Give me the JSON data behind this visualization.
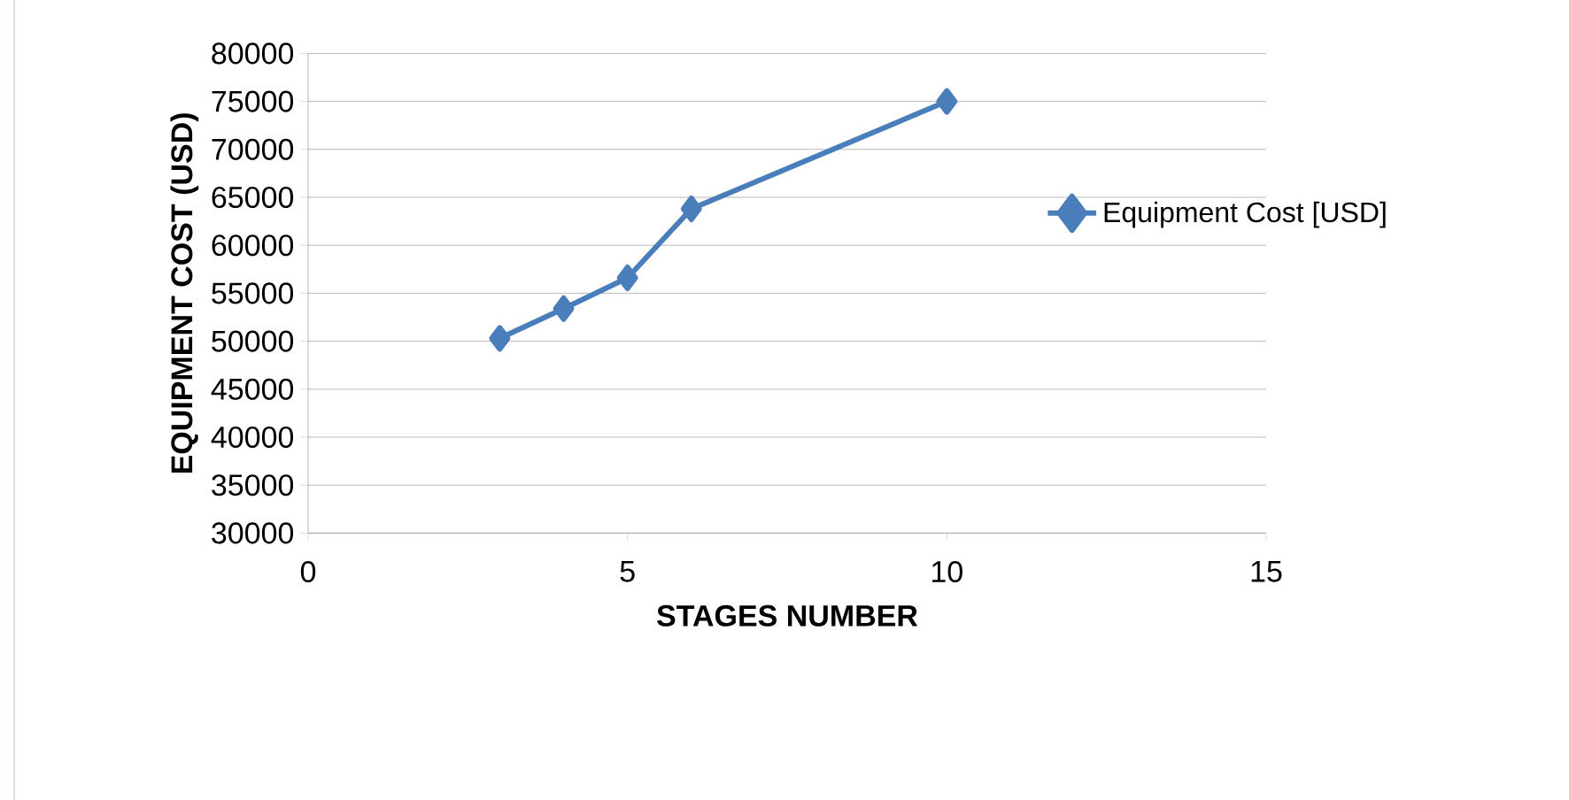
{
  "chart_data": {
    "type": "line",
    "xlabel": "STAGES NUMBER",
    "ylabel": "EQUIPMENT COST (USD)",
    "x": [
      3,
      4,
      5,
      6,
      10
    ],
    "series": [
      {
        "name": "Equipment Cost [USD]",
        "color": "#4a7ebb",
        "values": [
          50300,
          53400,
          56600,
          63800,
          75000
        ]
      }
    ],
    "xlim": [
      0,
      15
    ],
    "xticks": [
      0,
      5,
      10,
      15
    ],
    "ylim": [
      30000,
      80000
    ],
    "yticks": [
      30000,
      35000,
      40000,
      45000,
      50000,
      55000,
      60000,
      65000,
      70000,
      75000,
      80000
    ],
    "grid": "y",
    "legend": "right",
    "marker": "diamond",
    "line_style": "solid"
  }
}
